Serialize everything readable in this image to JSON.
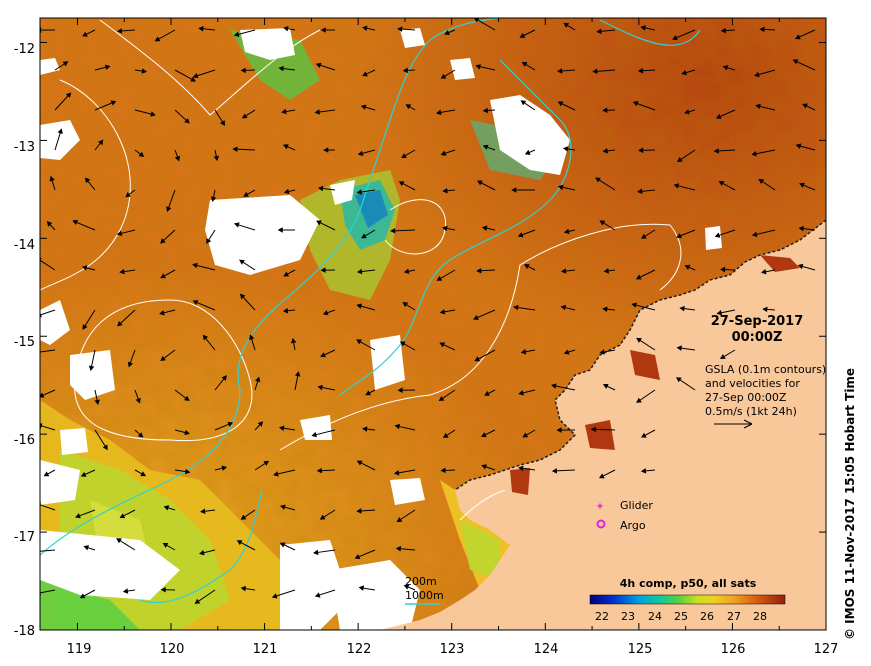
{
  "map": {
    "date_line1": "27-Sep-2017",
    "date_line2": "00:00Z",
    "gsla_lines": [
      "GSLA (0.1m contours)",
      "and velocities for",
      "27-Sep 00:00Z",
      "0.5m/s (1kt 24h)"
    ],
    "legend_glider": "Glider",
    "legend_argo": "Argo",
    "bathy_200": "200m",
    "bathy_1000": "1000m",
    "colorbar_title": "4h comp, p50, all sats",
    "colorbar_ticks": [
      "22",
      "23",
      "24",
      "25",
      "26",
      "27",
      "28"
    ],
    "credit": "© IMOS 11-Nov-2017 15:05 Hobart Time",
    "x_ticks": [
      "119",
      "120",
      "121",
      "122",
      "123",
      "124",
      "125",
      "126",
      "127"
    ],
    "y_ticks": [
      "-12",
      "-13",
      "-14",
      "-15",
      "-16",
      "-17",
      "-18"
    ],
    "colors": {
      "land": "#f9c89a",
      "ocean_base": "#d8741a",
      "cloud": "#ffffff",
      "contour_200": "#ffffff",
      "contour_1000": "#2fd2d2",
      "glider": "#e040c0",
      "argo": "#e020e0"
    }
  },
  "chart_data": {
    "type": "heatmap",
    "title": "4h comp, p50, all sats",
    "x_range": [
      118.6,
      127
    ],
    "y_range": [
      -18,
      -11.75
    ],
    "x_ticks": [
      119,
      120,
      121,
      122,
      123,
      124,
      125,
      126,
      127
    ],
    "y_ticks": [
      -12,
      -13,
      -14,
      -15,
      -16,
      -17,
      -18
    ],
    "colorbar_range": [
      21.5,
      28.8
    ],
    "colorbar_ticks": [
      22,
      23,
      24,
      25,
      26,
      27,
      28
    ],
    "velocity_reference": "0.5m/s (1kt 24h)"
  }
}
